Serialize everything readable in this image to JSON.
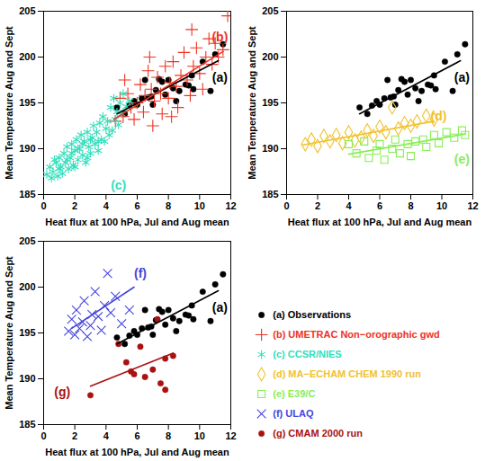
{
  "chart_data": [
    {
      "type": "scatter",
      "xlabel": "Heat flux at 100 hPa, Jul and Aug mean",
      "ylabel": "Mean Temperature Aug and Sept",
      "xlim": [
        0,
        12
      ],
      "xticks": [
        0,
        2,
        4,
        6,
        8,
        10,
        12
      ],
      "ylim": [
        185,
        205
      ],
      "yticks": [
        185,
        190,
        195,
        200,
        205
      ],
      "series": [
        {
          "name": "(a) Observations",
          "color": "#000000",
          "marker": "dot",
          "x": [
            4.7,
            5.2,
            5.5,
            5.8,
            6.0,
            6.3,
            6.5,
            6.7,
            6.9,
            7.0,
            7.2,
            7.4,
            7.6,
            7.8,
            8.0,
            8.3,
            8.5,
            8.7,
            9.1,
            9.3,
            9.5,
            9.6,
            10.2,
            10.7,
            11.0,
            11.5
          ],
          "y": [
            194.5,
            193.8,
            194.7,
            195.2,
            194.8,
            195.5,
            197.5,
            195.6,
            195.7,
            194.8,
            196.4,
            197.6,
            197.3,
            195.9,
            197.5,
            196.6,
            195.2,
            196.3,
            197.0,
            196.9,
            198.0,
            196.5,
            199.5,
            196.3,
            200.3,
            201.4
          ],
          "fit_x": [
            4.7,
            11.2
          ],
          "fit_y": [
            193.8,
            199.6
          ]
        },
        {
          "name": "(b) UMETRAC Non−orographic gwd",
          "color": "#ee3322",
          "marker": "plus",
          "x": [
            4.6,
            4.9,
            5.1,
            5.4,
            5.6,
            5.8,
            6.0,
            6.2,
            6.4,
            6.5,
            6.7,
            6.9,
            7.0,
            7.1,
            7.3,
            7.5,
            7.6,
            7.8,
            8.0,
            8.1,
            8.3,
            8.5,
            8.6,
            8.8,
            9.0,
            9.2,
            9.4,
            9.6,
            9.8,
            10.0,
            10.2,
            10.4,
            10.6,
            10.8,
            11.0,
            11.2,
            11.5,
            11.8,
            5.2,
            6.8,
            9.5,
            8.2
          ],
          "y": [
            193.0,
            195.5,
            193.5,
            196.0,
            194.5,
            193.2,
            195.0,
            197.0,
            194.0,
            195.8,
            198.5,
            196.5,
            192.5,
            195.2,
            197.8,
            196.0,
            193.8,
            199.0,
            195.5,
            197.2,
            199.5,
            196.8,
            194.5,
            198.0,
            200.5,
            197.5,
            195.8,
            199.0,
            201.0,
            198.2,
            196.5,
            200.0,
            202.0,
            199.2,
            201.5,
            200.0,
            200.8,
            204.5,
            197.5,
            200.0,
            203.0,
            193.5
          ],
          "fit_x": [
            4.5,
            11.5
          ],
          "fit_y": [
            193.2,
            200.6
          ]
        },
        {
          "name": "(c) CCSR/NIES",
          "color": "#33ddbb",
          "marker": "asterisk",
          "x": [
            0.2,
            0.4,
            0.5,
            0.6,
            0.8,
            0.9,
            1.0,
            1.1,
            1.2,
            1.3,
            1.4,
            1.5,
            1.6,
            1.7,
            1.8,
            1.9,
            2.0,
            2.1,
            2.2,
            2.3,
            2.4,
            2.5,
            2.6,
            2.7,
            2.8,
            2.9,
            3.0,
            3.1,
            3.2,
            3.3,
            3.4,
            3.5,
            3.6,
            3.7,
            3.8,
            3.9,
            4.0,
            4.1,
            4.2,
            4.3,
            4.4,
            4.5,
            4.6,
            4.7,
            4.8,
            4.9,
            5.0,
            5.1,
            5.3,
            5.5,
            1.0,
            1.5,
            2.0,
            2.5,
            3.0,
            3.5,
            0.7,
            1.8,
            2.2,
            2.8
          ],
          "y": [
            187.2,
            188.0,
            186.8,
            187.5,
            188.5,
            187.0,
            189.0,
            188.0,
            187.3,
            189.5,
            188.5,
            190.2,
            187.8,
            189.0,
            190.5,
            188.2,
            189.8,
            191.0,
            188.8,
            190.0,
            191.5,
            189.3,
            190.8,
            188.5,
            191.8,
            190.2,
            189.5,
            191.2,
            192.5,
            190.5,
            191.8,
            189.8,
            192.8,
            191.0,
            193.5,
            190.8,
            192.2,
            193.0,
            191.5,
            194.5,
            192.0,
            195.5,
            193.2,
            194.0,
            192.6,
            195.0,
            193.8,
            196.0,
            194.6,
            195.2,
            187.8,
            188.8,
            188.0,
            190.5,
            191.0,
            190.8,
            188.8,
            189.5,
            190.0,
            189.0
          ]
        }
      ],
      "annotations": [
        {
          "text": "(b)",
          "x": 11.3,
          "y": 202.2,
          "color": "#ee3322"
        },
        {
          "text": "(a)",
          "x": 11.3,
          "y": 197.7,
          "color": "#000000"
        },
        {
          "text": "(c)",
          "x": 4.8,
          "y": 186.0,
          "color": "#33ddbb"
        }
      ]
    },
    {
      "type": "scatter",
      "xlabel": "Heat flux at 100 hPa, Jul and Aug mean",
      "ylabel": "Mean Temperature Aug and Sept",
      "xlim": [
        0,
        12
      ],
      "xticks": [
        0,
        2,
        4,
        6,
        8,
        10,
        12
      ],
      "ylim": [
        185,
        205
      ],
      "yticks": [
        185,
        190,
        195,
        200,
        205
      ],
      "series": [
        {
          "name": "(a) Observations",
          "color": "#000000",
          "marker": "dot",
          "x": [
            4.7,
            5.2,
            5.5,
            5.8,
            6.0,
            6.3,
            6.5,
            6.7,
            6.9,
            7.0,
            7.2,
            7.4,
            7.6,
            7.8,
            8.0,
            8.3,
            8.5,
            8.7,
            9.1,
            9.3,
            9.5,
            9.6,
            10.2,
            10.7,
            11.0,
            11.5
          ],
          "y": [
            194.5,
            193.8,
            194.7,
            195.2,
            194.8,
            195.5,
            197.5,
            195.6,
            195.7,
            194.8,
            196.4,
            197.6,
            197.3,
            195.9,
            197.5,
            196.6,
            195.2,
            196.3,
            197.0,
            196.9,
            198.0,
            196.5,
            199.5,
            196.3,
            200.3,
            201.4
          ],
          "fit_x": [
            4.7,
            11.2
          ],
          "fit_y": [
            193.8,
            199.6
          ]
        },
        {
          "name": "(d) MA−ECHAM CHEM 1990 run",
          "color": "#f2c12e",
          "marker": "diamond",
          "x": [
            1.2,
            1.6,
            2.0,
            2.4,
            2.8,
            3.2,
            3.6,
            4.0,
            4.4,
            4.8,
            5.2,
            5.6,
            6.0,
            6.4,
            6.8,
            7.2,
            7.6,
            8.0,
            8.4,
            9.0,
            9.5
          ],
          "y": [
            190.5,
            191.0,
            190.3,
            191.4,
            190.8,
            191.5,
            190.6,
            191.8,
            190.9,
            191.2,
            192.0,
            191.4,
            192.4,
            191.8,
            194.5,
            192.2,
            192.8,
            192.5,
            193.0,
            193.6,
            193.2
          ],
          "fit_x": [
            1.0,
            9.5
          ],
          "fit_y": [
            190.4,
            193.0
          ]
        },
        {
          "name": "(e) E39/C",
          "color": "#88ee55",
          "marker": "square",
          "x": [
            4.0,
            4.5,
            5.0,
            5.3,
            5.8,
            6.0,
            6.3,
            6.8,
            7.0,
            7.3,
            7.8,
            8.0,
            8.3,
            8.8,
            9.0,
            9.5,
            9.8,
            10.3,
            10.8,
            11.3,
            11.5
          ],
          "y": [
            190.5,
            189.5,
            190.8,
            189.0,
            189.8,
            190.5,
            188.8,
            190.0,
            191.0,
            189.5,
            190.5,
            189.2,
            190.8,
            191.0,
            190.2,
            191.5,
            190.6,
            191.8,
            191.2,
            192.0,
            191.5
          ],
          "fit_x": [
            4.0,
            11.5
          ],
          "fit_y": [
            189.4,
            191.6
          ]
        }
      ],
      "annotations": [
        {
          "text": "(a)",
          "x": 11.3,
          "y": 197.7,
          "color": "#000000"
        },
        {
          "text": "(d)",
          "x": 9.8,
          "y": 193.5,
          "color": "#f2c12e"
        },
        {
          "text": "(e)",
          "x": 11.3,
          "y": 188.8,
          "color": "#88ee55"
        }
      ]
    },
    {
      "type": "scatter",
      "xlabel": "Heat flux at 100 hPa, Jul and Aug mean",
      "ylabel": "Mean Temperature Aug and Sept",
      "xlim": [
        0,
        12
      ],
      "xticks": [
        0,
        2,
        4,
        6,
        8,
        10,
        12
      ],
      "ylim": [
        185,
        205
      ],
      "yticks": [
        185,
        190,
        195,
        200,
        205
      ],
      "legend": "lower right",
      "series": [
        {
          "name": "(a) Observations",
          "color": "#000000",
          "marker": "dot",
          "x": [
            4.7,
            5.2,
            5.5,
            5.8,
            6.0,
            6.3,
            6.5,
            6.7,
            6.9,
            7.0,
            7.2,
            7.4,
            7.6,
            7.8,
            8.0,
            8.3,
            8.5,
            8.7,
            9.1,
            9.3,
            9.5,
            9.6,
            10.2,
            10.7,
            11.0,
            11.5
          ],
          "y": [
            194.5,
            193.8,
            194.7,
            195.2,
            194.8,
            195.5,
            197.5,
            195.6,
            195.7,
            194.8,
            196.4,
            197.6,
            197.3,
            195.9,
            197.5,
            196.6,
            195.2,
            196.3,
            197.0,
            196.9,
            198.0,
            196.5,
            199.5,
            196.3,
            200.3,
            201.4
          ],
          "fit_x": [
            4.7,
            11.2
          ],
          "fit_y": [
            193.8,
            199.6
          ]
        },
        {
          "name": "(f) ULAQ",
          "color": "#4444dd",
          "marker": "times",
          "x": [
            1.6,
            1.8,
            2.0,
            2.1,
            2.3,
            2.5,
            2.6,
            2.8,
            3.0,
            3.1,
            3.3,
            3.5,
            3.7,
            3.9,
            4.1,
            4.3,
            4.6,
            5.0,
            5.5
          ],
          "y": [
            195.2,
            196.5,
            194.8,
            197.5,
            195.5,
            196.2,
            198.5,
            194.6,
            195.8,
            197.0,
            199.5,
            196.8,
            195.3,
            198.0,
            201.5,
            197.2,
            199.0,
            196.0,
            197.5
          ],
          "fit_x": [
            1.8,
            5.8
          ],
          "fit_y": [
            195.5,
            200.0
          ]
        },
        {
          "name": "(g) CMAM 2000 run",
          "color": "#aa1111",
          "marker": "dot",
          "x": [
            3.0,
            5.3,
            5.6,
            5.8,
            6.2,
            6.5,
            7.0,
            7.3,
            7.8,
            7.5,
            7.8,
            8.3,
            4.8
          ],
          "y": [
            188.2,
            191.8,
            190.8,
            190.5,
            193.5,
            190.2,
            191.0,
            196.5,
            192.2,
            189.5,
            188.8,
            192.5,
            193.8
          ],
          "fit_x": [
            3.0,
            8.3
          ],
          "fit_y": [
            189.2,
            192.8
          ]
        }
      ],
      "annotations": [
        {
          "text": "(f)",
          "x": 6.2,
          "y": 201.5,
          "color": "#4444dd"
        },
        {
          "text": "(a)",
          "x": 11.3,
          "y": 197.7,
          "color": "#000000"
        },
        {
          "text": "(g)",
          "x": 1.2,
          "y": 188.5,
          "color": "#aa1111"
        }
      ]
    }
  ]
}
